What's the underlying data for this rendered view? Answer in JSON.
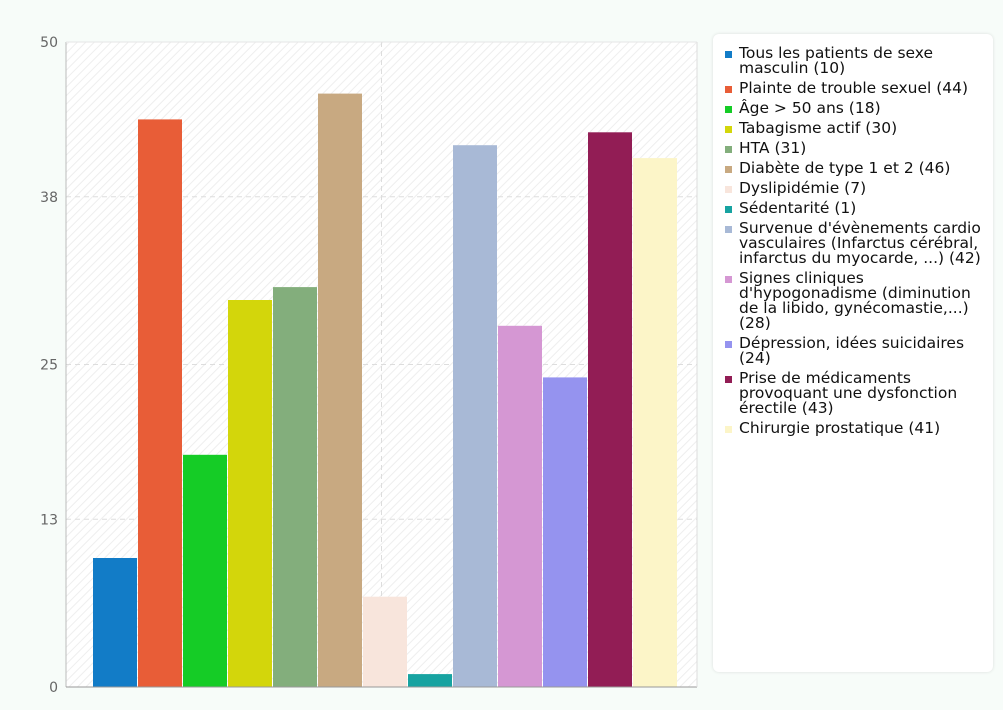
{
  "chart_data": {
    "type": "bar",
    "title": "",
    "xlabel": "",
    "ylabel": "",
    "ylim": [
      0,
      50
    ],
    "yticks": [
      "0",
      "13",
      "25",
      "38",
      "50"
    ],
    "grid": true,
    "legend_position": "right",
    "series": [
      {
        "name": "Tous les patients de sexe masculin (10)",
        "value": 10,
        "color": "#127cc7"
      },
      {
        "name": "Plainte de trouble sexuel (44)",
        "value": 44,
        "color": "#e85d37"
      },
      {
        "name": "Âge > 50 ans (18)",
        "value": 18,
        "color": "#15cc26"
      },
      {
        "name": "Tabagisme actif (30)",
        "value": 30,
        "color": "#d3d60b"
      },
      {
        "name": "HTA (31)",
        "value": 31,
        "color": "#83ae7c"
      },
      {
        "name": "Diabète de type 1 et 2 (46)",
        "value": 46,
        "color": "#c8a981"
      },
      {
        "name": "Dyslipidémie (7)",
        "value": 7,
        "color": "#f8e5dc"
      },
      {
        "name": "Sédentarité (1)",
        "value": 1,
        "color": "#17a3a1"
      },
      {
        "name": "Survenue d'évènements cardio vasculaires (Infarctus cérébral, infarctus du myocarde, ...) (42)",
        "value": 42,
        "color": "#a8b9d6"
      },
      {
        "name": "Signes cliniques d'hypogonadisme (diminution de la libido, gynécomastie,...) (28)",
        "value": 28,
        "color": "#d597d3"
      },
      {
        "name": "Dépression, idées suicidaires (24)",
        "value": 24,
        "color": "#9593ef"
      },
      {
        "name": "Prise de médicaments provoquant une dysfonction érectile (43)",
        "value": 43,
        "color": "#921d55"
      },
      {
        "name": "Chirurgie prostatique (41)",
        "value": 41,
        "color": "#fcf5c8"
      }
    ]
  }
}
